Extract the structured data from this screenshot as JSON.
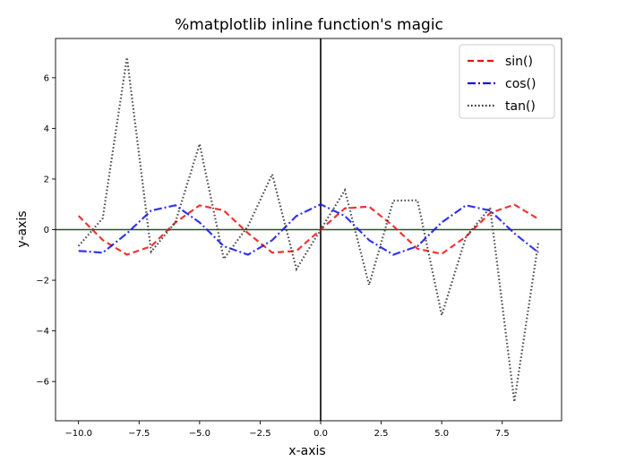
{
  "chart_data": {
    "type": "line",
    "title": "%matplotlib inline function's magic",
    "xlabel": "x-axis",
    "ylabel": "y-axis",
    "xlim": [
      -10.95,
      9.95
    ],
    "ylim": [
      -7.55,
      7.55
    ],
    "x_ticks": [
      -10.0,
      -7.5,
      -5.0,
      -2.5,
      0.0,
      2.5,
      5.0,
      7.5
    ],
    "x_tick_labels": [
      "−10.0",
      "−7.5",
      "−5.0",
      "−2.5",
      "0.0",
      "2.5",
      "5.0",
      "7.5"
    ],
    "y_ticks": [
      -6,
      -4,
      -2,
      0,
      2,
      4,
      6
    ],
    "y_tick_labels": [
      "−6",
      "−4",
      "−2",
      "0",
      "2",
      "4",
      "6"
    ],
    "grid": false,
    "legend_position": "top-right",
    "x": [
      -10,
      -9,
      -8,
      -7,
      -6,
      -5,
      -4,
      -3,
      -2,
      -1,
      0,
      1,
      2,
      3,
      4,
      5,
      6,
      7,
      8,
      9
    ],
    "series": [
      {
        "name": "sin()",
        "color": "#ee1111",
        "style": "dashed",
        "values": [
          0.544,
          -0.412,
          -0.989,
          -0.657,
          0.279,
          0.959,
          0.757,
          -0.141,
          -0.909,
          -0.841,
          0.0,
          0.841,
          0.909,
          0.141,
          -0.757,
          -0.959,
          -0.279,
          0.657,
          0.989,
          0.412
        ]
      },
      {
        "name": "cos()",
        "color": "#1111ee",
        "style": "dashdot",
        "values": [
          -0.839,
          -0.911,
          -0.146,
          0.754,
          0.96,
          0.284,
          -0.654,
          -0.99,
          -0.416,
          0.54,
          1.0,
          0.54,
          -0.416,
          -0.99,
          -0.654,
          0.284,
          0.96,
          0.754,
          -0.146,
          -0.911
        ]
      },
      {
        "name": "tan()",
        "color": "#333333",
        "style": "dotted",
        "values": [
          -0.648,
          0.452,
          6.8,
          -0.871,
          0.291,
          3.381,
          -1.158,
          0.143,
          2.185,
          -1.557,
          0.0,
          1.557,
          -2.185,
          1.143,
          1.158,
          -3.381,
          -0.291,
          0.871,
          -6.8,
          -0.452
        ]
      }
    ],
    "reference_lines": {
      "vertical_x": 0,
      "horizontal_y": 0,
      "color": "#000000",
      "horizontal_color": "#2f4f2f"
    }
  }
}
